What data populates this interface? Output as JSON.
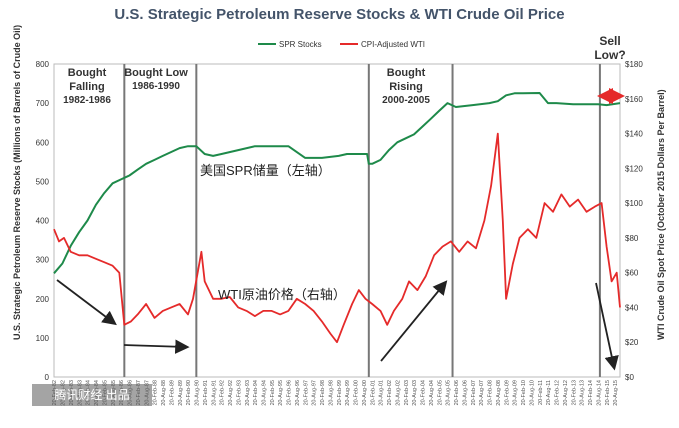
{
  "chart_data": {
    "type": "line",
    "title": "U.S. Strategic Petroleum Reserve Stocks & WTI Crude Oil Price",
    "ylabel_left": "U.S. Strategic Petroleum Reserve Stocks (Millions of Barrels of Crude Oil)",
    "ylabel_right": "WTI Crude Oil Spot Price (October 2015 Dollars Per Barrel)",
    "ylim_left": [
      0,
      800
    ],
    "ylim_right": [
      0,
      180
    ],
    "yticks_left": [
      "0",
      "100",
      "200",
      "300",
      "400",
      "500",
      "600",
      "700",
      "800"
    ],
    "yticks_right": [
      "$0",
      "$20",
      "$40",
      "$60",
      "$80",
      "$100",
      "$120",
      "$140",
      "$160",
      "$180"
    ],
    "xlim": [
      1982.0,
      2015.8
    ],
    "x_tick_note": "20-Feb / 20-Aug date labels at half-year intervals",
    "xtick_labels": [
      "20-Feb-82",
      "20-Aug-82",
      "20-Feb-83",
      "20-Aug-83",
      "20-Feb-84",
      "20-Aug-84",
      "20-Feb-85",
      "20-Aug-85",
      "20-Feb-86",
      "20-Aug-86",
      "20-Feb-87",
      "20-Aug-87",
      "20-Feb-88",
      "20-Aug-88",
      "20-Feb-89",
      "20-Aug-89",
      "20-Feb-90",
      "20-Aug-90",
      "20-Feb-91",
      "20-Aug-91",
      "20-Feb-92",
      "20-Aug-92",
      "20-Feb-93",
      "20-Aug-93",
      "20-Feb-94",
      "20-Aug-94",
      "20-Feb-95",
      "20-Aug-95",
      "20-Feb-96",
      "20-Aug-96",
      "20-Feb-97",
      "20-Aug-97",
      "20-Feb-98",
      "20-Aug-98",
      "20-Feb-99",
      "20-Aug-99",
      "20-Feb-00",
      "20-Aug-00",
      "20-Feb-01",
      "20-Aug-01",
      "20-Feb-02",
      "20-Aug-02",
      "20-Feb-03",
      "20-Aug-03",
      "20-Feb-04",
      "20-Aug-04",
      "20-Feb-05",
      "20-Aug-05",
      "20-Feb-06",
      "20-Aug-06",
      "20-Feb-07",
      "20-Aug-07",
      "20-Feb-08",
      "20-Aug-08",
      "20-Feb-09",
      "20-Aug-09",
      "20-Feb-10",
      "20-Aug-10",
      "20-Feb-11",
      "20-Aug-11",
      "20-Feb-12",
      "20-Aug-12",
      "20-Feb-13",
      "20-Aug-13",
      "20-Feb-14",
      "20-Aug-14",
      "20-Feb-15",
      "20-Aug-15"
    ],
    "legend": {
      "position": "top-center"
    },
    "grid": false,
    "series": [
      {
        "name": "SPR Stocks",
        "axis": "left",
        "color": "#1e8a4a",
        "x": [
          1982.0,
          1982.5,
          1983.0,
          1983.5,
          1984.0,
          1984.5,
          1985.0,
          1985.5,
          1986.0,
          1986.5,
          1987.0,
          1987.5,
          1988.0,
          1988.5,
          1989.0,
          1989.5,
          1990.0,
          1990.5,
          1991.0,
          1991.5,
          1992.0,
          1993.0,
          1994.0,
          1995.0,
          1996.0,
          1997.0,
          1998.0,
          1999.0,
          1999.5,
          2000.0,
          2000.7,
          2000.8,
          2001.0,
          2001.5,
          2002.0,
          2002.5,
          2003.0,
          2003.5,
          2004.0,
          2004.5,
          2005.0,
          2005.5,
          2006.0,
          2007.0,
          2008.0,
          2008.5,
          2009.0,
          2009.5,
          2010.0,
          2011.0,
          2011.5,
          2012.0,
          2013.0,
          2014.0,
          2014.5,
          2015.0,
          2015.8
        ],
        "values": [
          265,
          290,
          335,
          370,
          400,
          440,
          470,
          495,
          505,
          515,
          530,
          545,
          555,
          565,
          575,
          585,
          590,
          590,
          570,
          565,
          570,
          580,
          590,
          590,
          590,
          560,
          560,
          565,
          570,
          570,
          570,
          545,
          545,
          555,
          580,
          600,
          610,
          620,
          640,
          660,
          680,
          700,
          690,
          695,
          700,
          705,
          720,
          725,
          725,
          726,
          700,
          700,
          697,
          697,
          697,
          695,
          700
        ]
      },
      {
        "name": "CPI-Adjusted WTI",
        "axis": "right",
        "color": "#e52a2a",
        "x": [
          1982.0,
          1982.3,
          1982.6,
          1983.0,
          1983.5,
          1984.0,
          1984.5,
          1985.0,
          1985.5,
          1985.9,
          1986.2,
          1986.6,
          1987.0,
          1987.5,
          1988.0,
          1988.5,
          1989.0,
          1989.5,
          1990.0,
          1990.3,
          1990.8,
          1991.0,
          1991.5,
          1992.0,
          1992.5,
          1993.0,
          1993.5,
          1994.0,
          1994.5,
          1995.0,
          1995.5,
          1996.0,
          1996.5,
          1997.0,
          1997.5,
          1998.0,
          1998.5,
          1998.9,
          1999.3,
          1999.8,
          2000.2,
          2000.6,
          2001.0,
          2001.5,
          2001.9,
          2002.3,
          2002.8,
          2003.2,
          2003.7,
          2004.2,
          2004.7,
          2005.2,
          2005.7,
          2006.2,
          2006.7,
          2007.2,
          2007.7,
          2008.1,
          2008.5,
          2008.8,
          2009.0,
          2009.4,
          2009.8,
          2010.3,
          2010.8,
          2011.3,
          2011.8,
          2012.3,
          2012.8,
          2013.3,
          2013.8,
          2014.3,
          2014.7,
          2015.0,
          2015.3,
          2015.6,
          2015.8
        ],
        "values": [
          85,
          78,
          80,
          72,
          70,
          70,
          68,
          66,
          64,
          60,
          30,
          32,
          36,
          42,
          34,
          38,
          40,
          42,
          36,
          45,
          72,
          55,
          45,
          45,
          46,
          40,
          38,
          35,
          38,
          38,
          36,
          38,
          45,
          42,
          38,
          32,
          25,
          20,
          30,
          42,
          50,
          45,
          42,
          38,
          30,
          38,
          45,
          55,
          50,
          58,
          70,
          75,
          78,
          72,
          78,
          74,
          90,
          110,
          140,
          90,
          45,
          65,
          80,
          85,
          80,
          100,
          95,
          105,
          98,
          102,
          95,
          98,
          100,
          75,
          55,
          60,
          40
        ]
      }
    ],
    "annotations": {
      "periods": [
        {
          "title": "Bought Falling",
          "years": "1982-1986"
        },
        {
          "title": "Bought Low",
          "years": "1986-1990"
        },
        {
          "title": "Bought Rising",
          "years": "2000-2005"
        },
        {
          "title": "Sell Low?",
          "years": ""
        }
      ],
      "cn_spr": "美国SPR储量（左轴）",
      "cn_wti": "WTI原油价格（右轴）",
      "watermark": "腾讯财经 出品"
    }
  }
}
